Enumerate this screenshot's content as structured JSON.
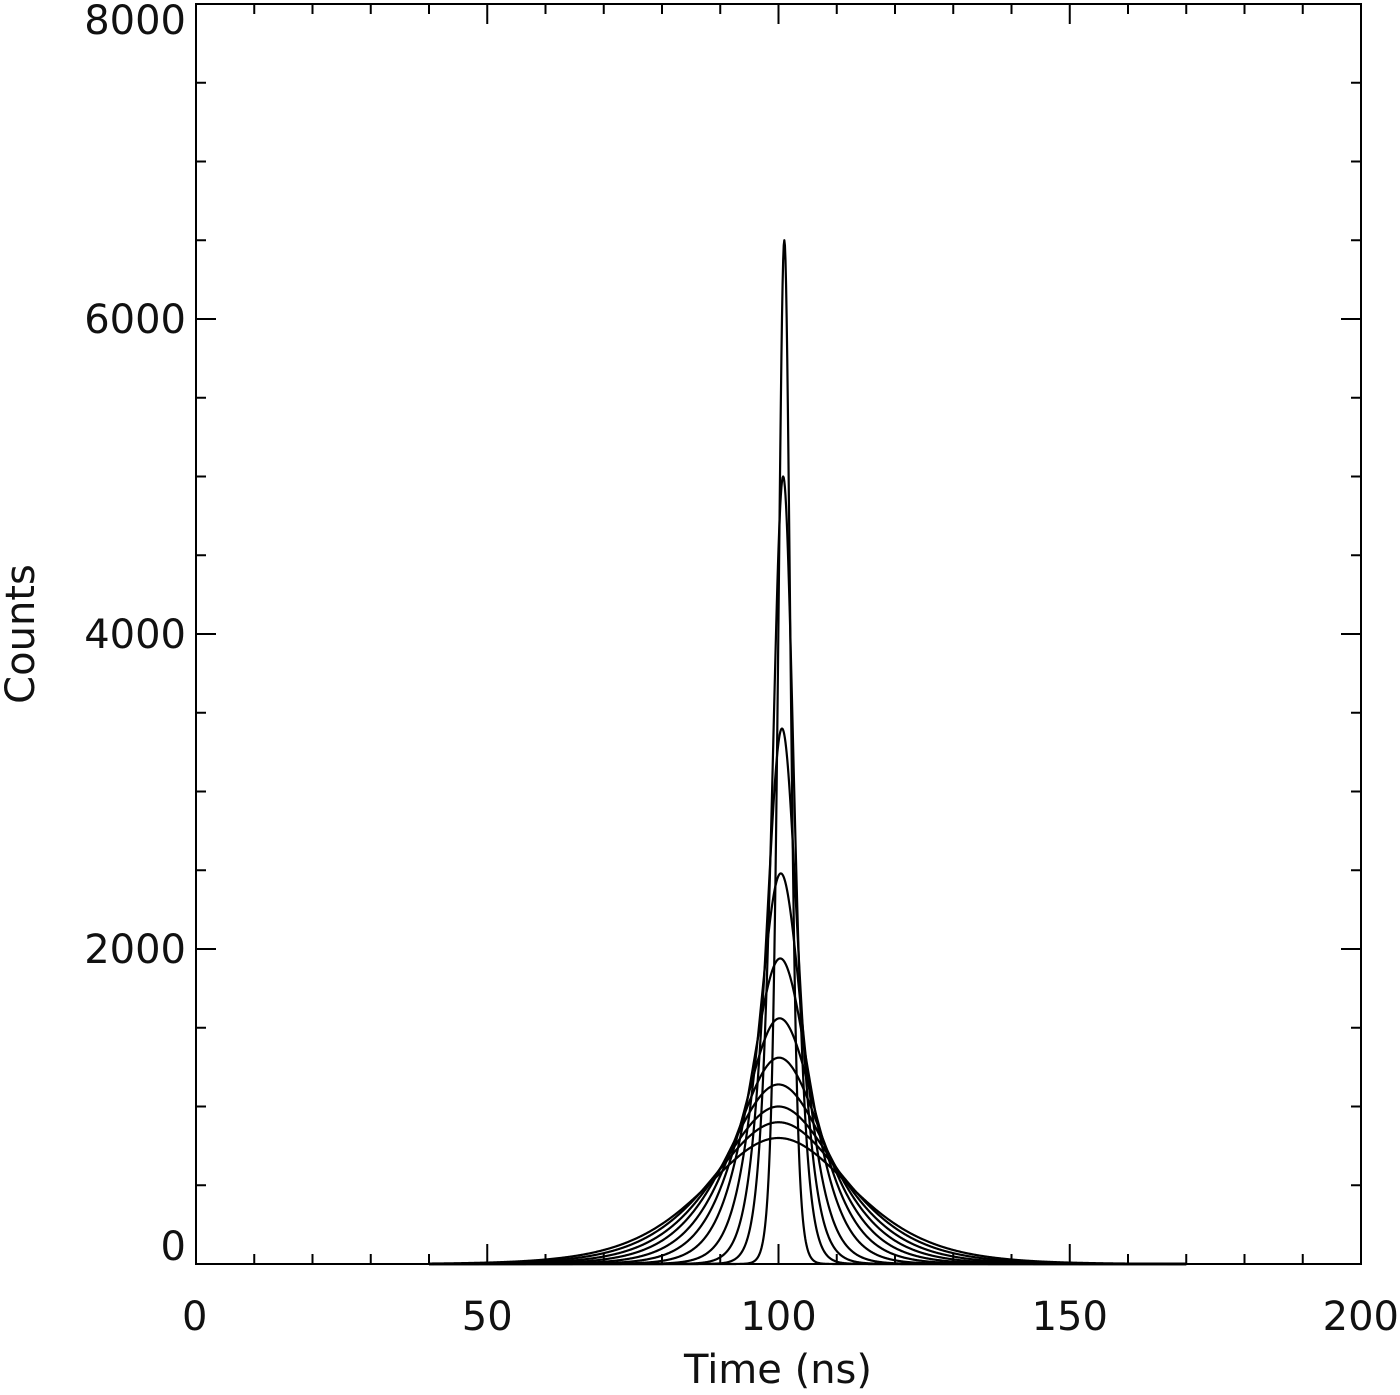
{
  "chart_data": {
    "type": "line",
    "title": "",
    "xlabel": "Time (ns)",
    "ylabel": "Counts",
    "xlim": [
      0,
      200
    ],
    "ylim": [
      0,
      8000
    ],
    "xticks": [
      0,
      50,
      100,
      150,
      200
    ],
    "xtick_labels": [
      "0",
      "50",
      "100",
      "150",
      "200"
    ],
    "yticks": [
      0,
      2000,
      4000,
      6000,
      8000
    ],
    "ytick_labels": [
      "0",
      "2000",
      "4000",
      "6000",
      "8000"
    ],
    "x_minor_step": 10,
    "y_minor_step": 500,
    "grid": false,
    "legend": "none",
    "line_color": "#000000",
    "curve_shape": "pulse centered at 100 ns; each series given by peak counts and its full width at half maximum (ns)",
    "series": [
      {
        "peak_x": 101,
        "peak": 6500,
        "fwhm": 2.5
      },
      {
        "peak_x": 100.8,
        "peak": 5000,
        "fwhm": 4.5
      },
      {
        "peak_x": 100.6,
        "peak": 3400,
        "fwhm": 6.5
      },
      {
        "peak_x": 100.4,
        "peak": 2480,
        "fwhm": 9
      },
      {
        "peak_x": 100.3,
        "peak": 1940,
        "fwhm": 12
      },
      {
        "peak_x": 100.2,
        "peak": 1560,
        "fwhm": 15
      },
      {
        "peak_x": 100.1,
        "peak": 1310,
        "fwhm": 18
      },
      {
        "peak_x": 100,
        "peak": 1140,
        "fwhm": 21
      },
      {
        "peak_x": 100,
        "peak": 1000,
        "fwhm": 24
      },
      {
        "peak_x": 100,
        "peak": 900,
        "fwhm": 27
      },
      {
        "peak_x": 100,
        "peak": 800,
        "fwhm": 30
      }
    ]
  }
}
